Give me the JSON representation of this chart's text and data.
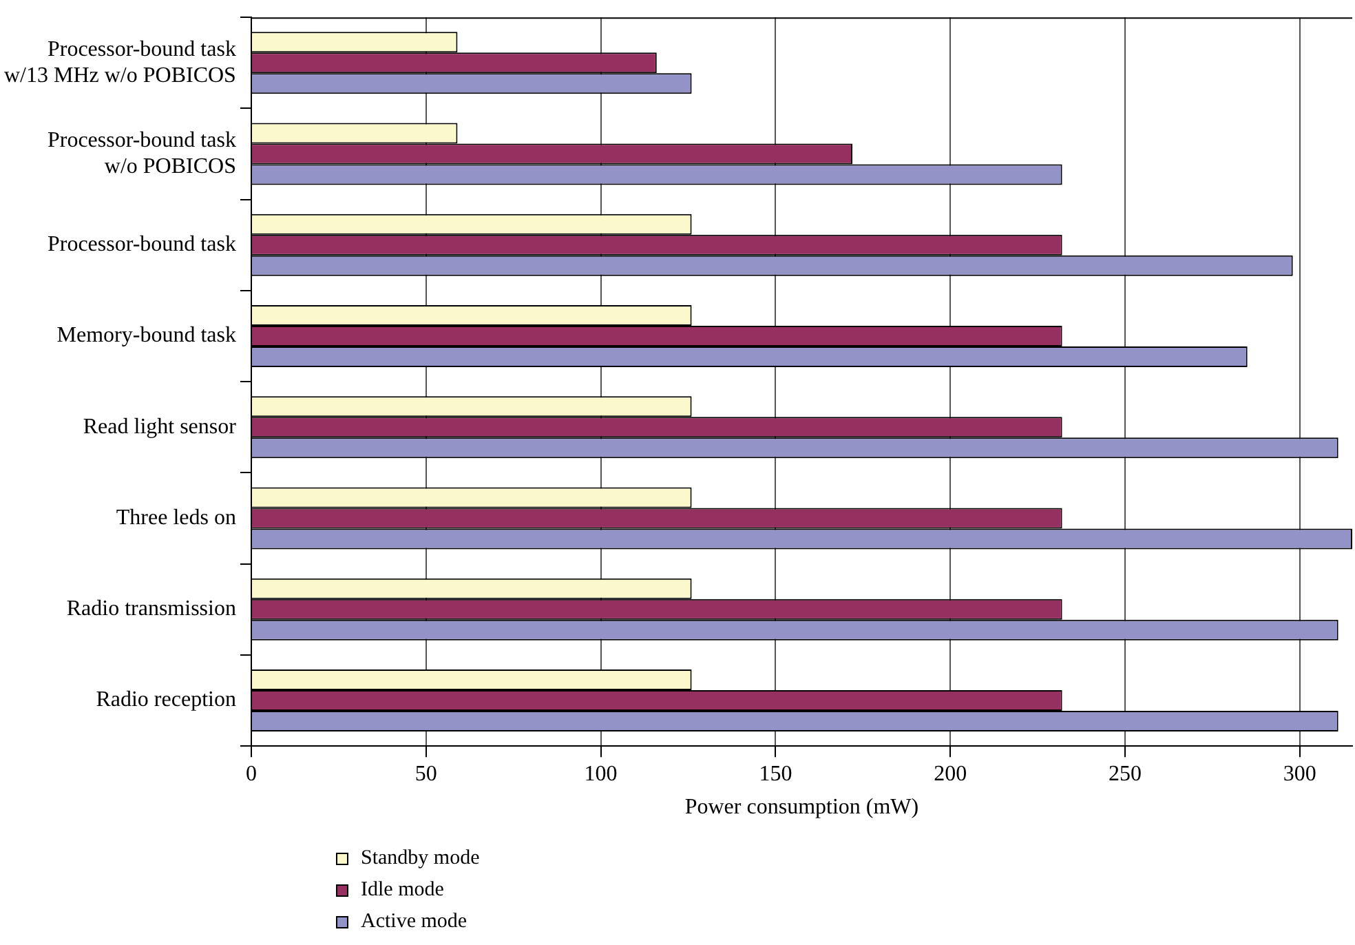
{
  "chart_data": {
    "type": "bar",
    "orientation": "horizontal",
    "xlabel": "Power consumption (mW)",
    "categories": [
      "Processor-bound task w/13 MHz w/o POBICOS",
      "Processor-bound task w/o POBICOS",
      "Processor-bound task",
      "Memory-bound task",
      "Read light sensor",
      "Three leds on",
      "Radio transmission",
      "Radio reception"
    ],
    "series": [
      {
        "name": "Standby mode",
        "color": "#fbf8cc",
        "values": [
          59,
          59,
          126,
          126,
          126,
          126,
          126,
          126
        ]
      },
      {
        "name": "Idle mode",
        "color": "#953060",
        "values": [
          116,
          172,
          232,
          232,
          232,
          232,
          232,
          232
        ]
      },
      {
        "name": "Active mode",
        "color": "#9393c8",
        "values": [
          126,
          232,
          298,
          285,
          311,
          315,
          311,
          311
        ]
      }
    ],
    "xlim": [
      0,
      315
    ],
    "xticks": [
      0,
      50,
      100,
      150,
      200,
      250,
      300
    ],
    "grid": "x",
    "legend": "bottom left"
  }
}
